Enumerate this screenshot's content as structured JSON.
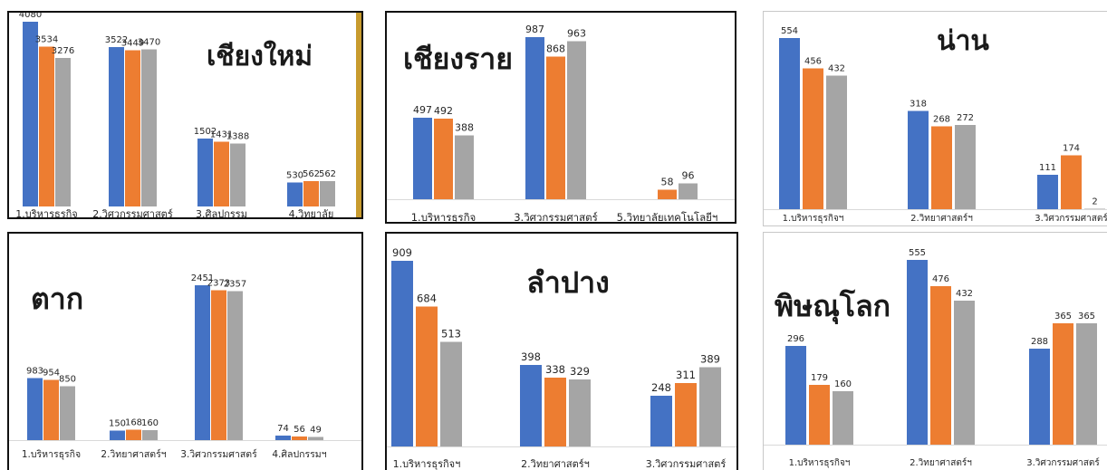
{
  "colors": {
    "series1": "#4472c4",
    "series2": "#ed7d31",
    "series3": "#a5a5a5",
    "frame_accent": "#c89b2e"
  },
  "chart_data": [
    {
      "type": "bar",
      "title": "เชียงใหม่",
      "categories": [
        "1.บริหารธุรกิจ",
        "2.วิศวกรรมศาสตร์",
        "3.ศิลปกรรม",
        "4.วิทยาลัย"
      ],
      "series": [
        {
          "values": [
            4080,
            3522,
            1502,
            530
          ]
        },
        {
          "values": [
            3534,
            3449,
            1431,
            562
          ]
        },
        {
          "values": [
            3276,
            3470,
            1388,
            562
          ]
        }
      ],
      "ylim": [
        0,
        4080
      ]
    },
    {
      "type": "bar",
      "title": "เชียงราย",
      "categories": [
        "1.บริหารธุรกิจ",
        "3.วิศวกรรมศาสตร์",
        "5.วิทยาลัยเทคโนโลยีฯ"
      ],
      "series": [
        {
          "values": [
            497,
            987,
            null
          ]
        },
        {
          "values": [
            492,
            868,
            58
          ]
        },
        {
          "values": [
            388,
            963,
            96
          ]
        }
      ],
      "ylim": [
        0,
        987
      ]
    },
    {
      "type": "bar",
      "title": "น่าน",
      "categories": [
        "1.บริหารธุรกิจฯ",
        "2.วิทยาศาสตร์ฯ",
        "3.วิศวกรรมศาสตร์"
      ],
      "series": [
        {
          "values": [
            554,
            318,
            111
          ]
        },
        {
          "values": [
            456,
            268,
            174
          ]
        },
        {
          "values": [
            432,
            272,
            2
          ]
        }
      ],
      "ylim": [
        0,
        554
      ]
    },
    {
      "type": "bar",
      "title": "ตาก",
      "categories": [
        "1.บริหารธุรกิจ",
        "2.วิทยาศาสตร์ฯ",
        "3.วิศวกรรมศาสตร์",
        "4.ศิลปกรรมฯ"
      ],
      "series": [
        {
          "values": [
            983,
            150,
            2451,
            74
          ]
        },
        {
          "values": [
            954,
            168,
            2373,
            56
          ]
        },
        {
          "values": [
            850,
            160,
            2357,
            49
          ]
        }
      ],
      "ylim": [
        0,
        2451
      ]
    },
    {
      "type": "bar",
      "title": "ลำปาง",
      "categories": [
        "1.บริหารธุรกิจฯ",
        "2.วิทยาศาสตร์ฯ",
        "3.วิศวกรรมศาสตร์"
      ],
      "series": [
        {
          "values": [
            909,
            398,
            248
          ]
        },
        {
          "values": [
            684,
            338,
            311
          ]
        },
        {
          "values": [
            513,
            329,
            389
          ]
        }
      ],
      "ylim": [
        0,
        909
      ]
    },
    {
      "type": "bar",
      "title": "พิษณุโลก",
      "categories": [
        "1.บริหารธุรกิจฯ",
        "2.วิทยาศาสตร์ฯ",
        "3.วิศวกรรมศาสตร์"
      ],
      "series": [
        {
          "values": [
            296,
            555,
            288
          ]
        },
        {
          "values": [
            179,
            476,
            365
          ]
        },
        {
          "values": [
            160,
            432,
            365
          ]
        }
      ],
      "ylim": [
        0,
        555
      ]
    }
  ]
}
